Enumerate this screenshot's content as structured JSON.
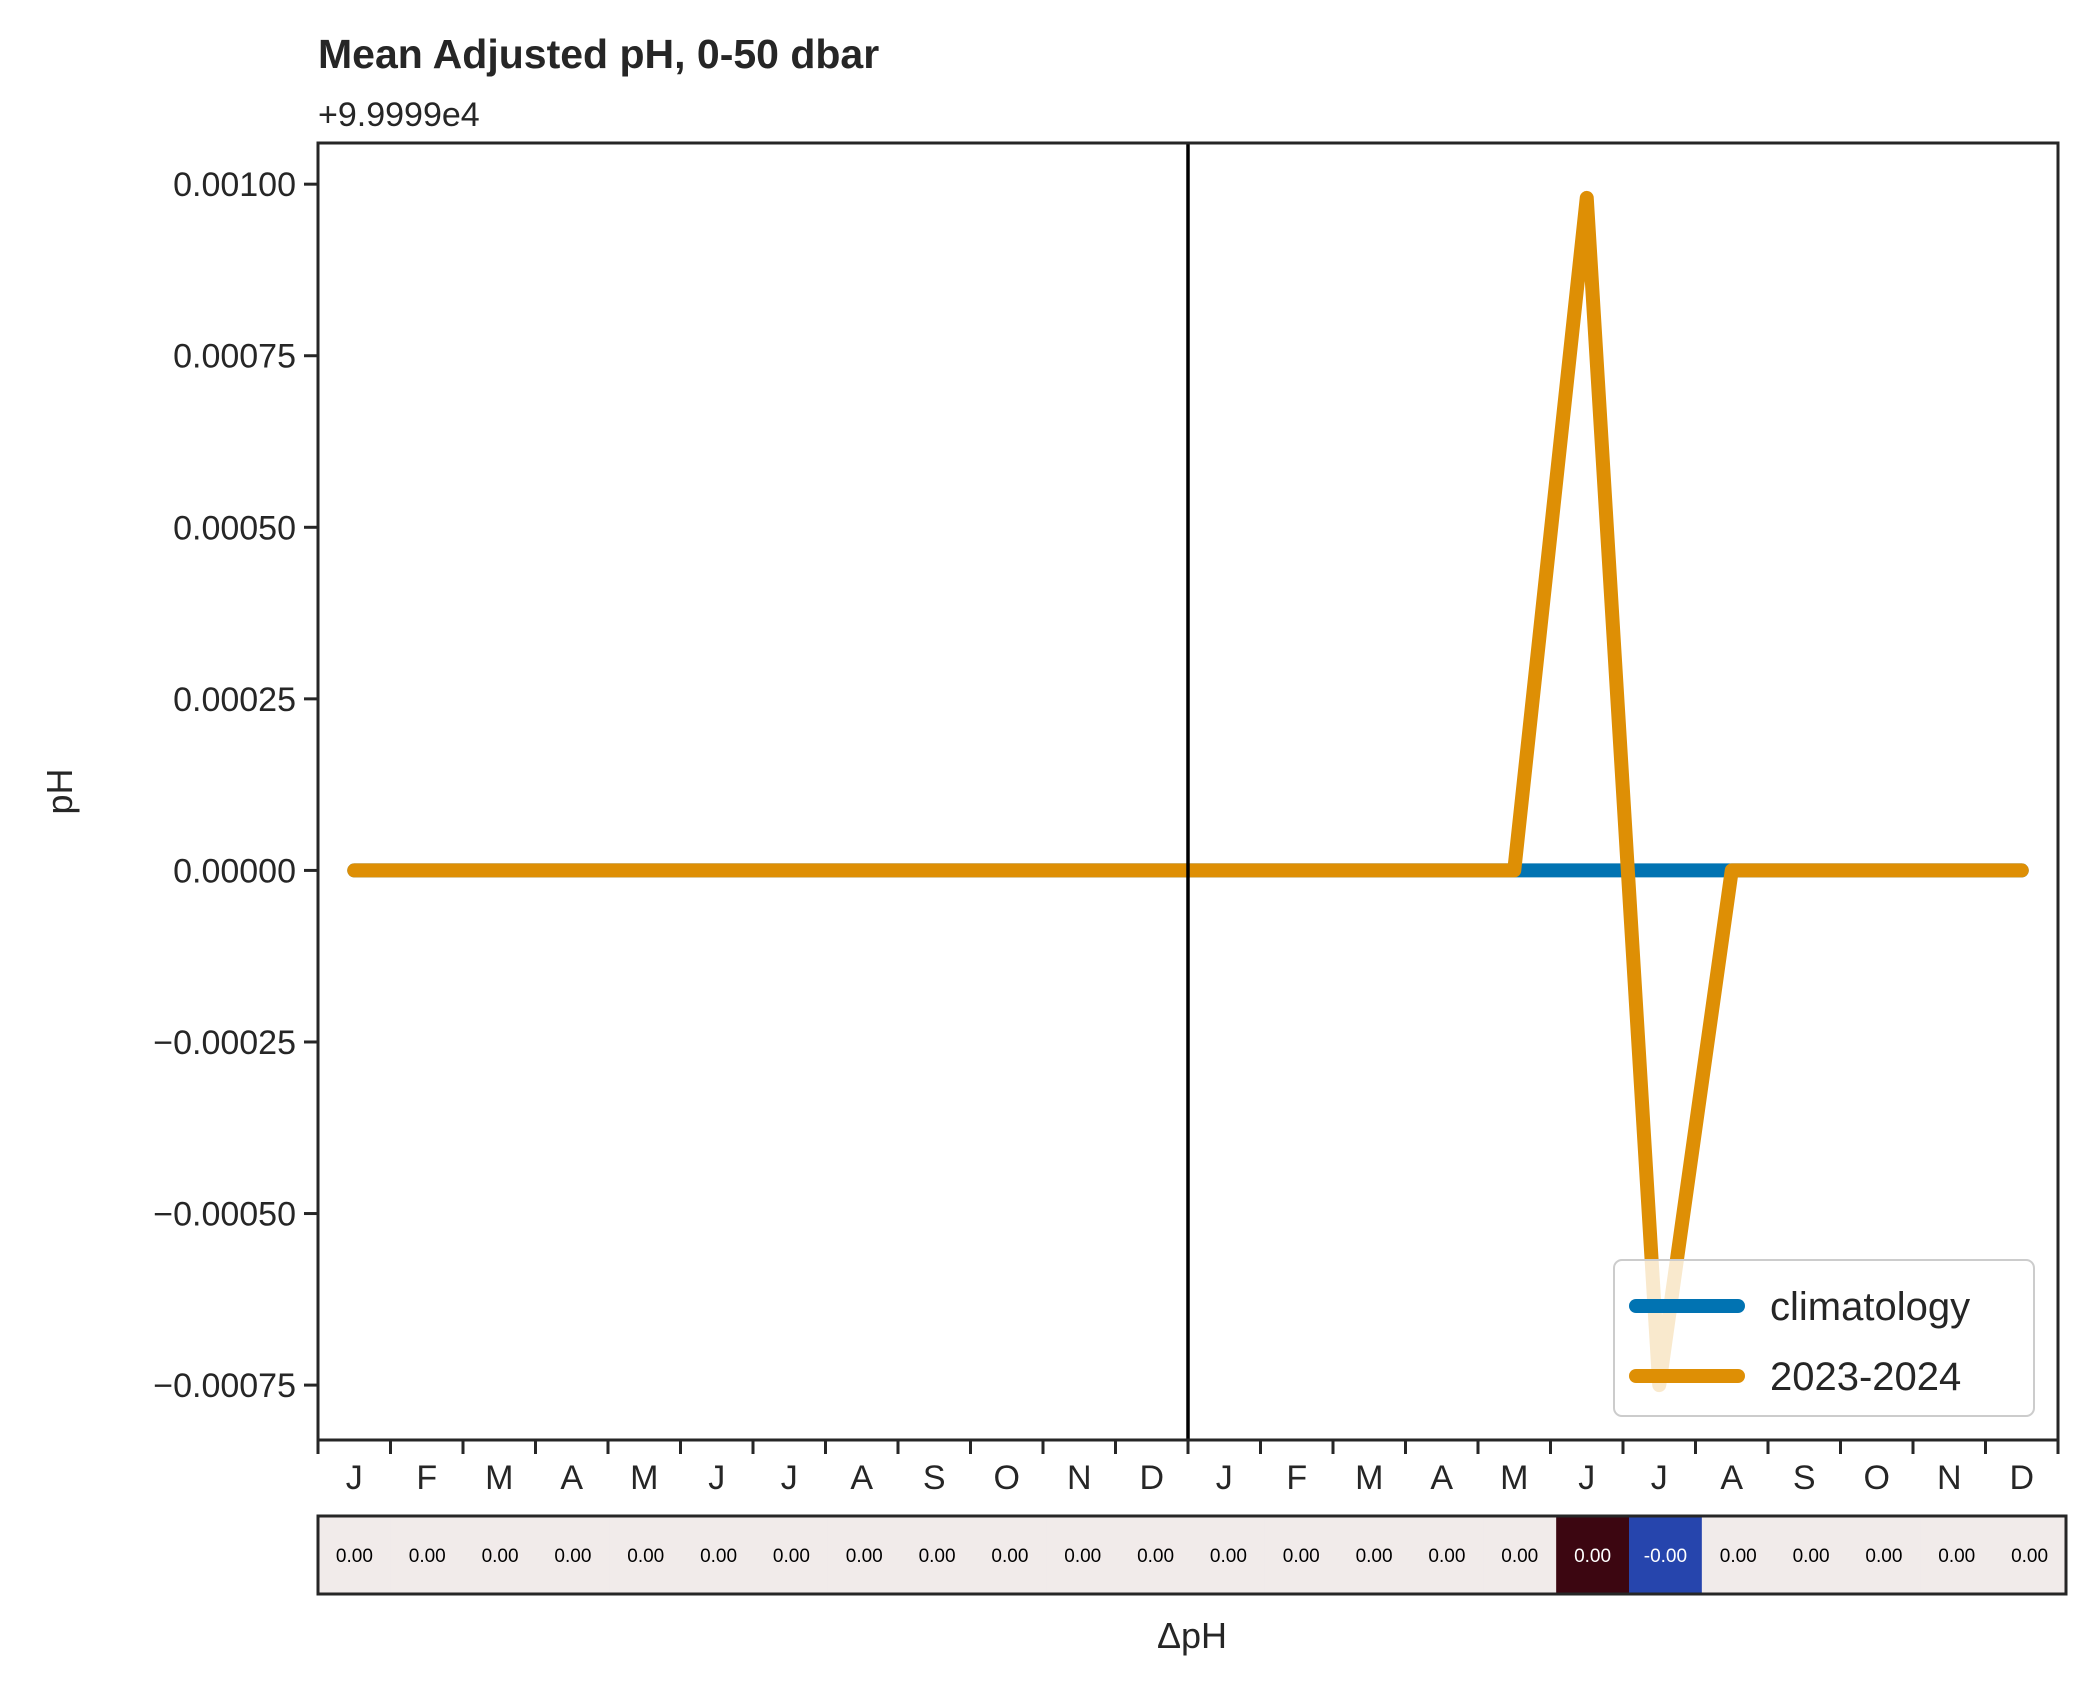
{
  "chart_data": {
    "type": "line",
    "title": "Mean Adjusted pH, 0-50 dbar",
    "offset_text": "+9.9999e4",
    "ylabel": "pH",
    "xlabel": "ΔpH",
    "ylim": [
      -0.00083,
      0.00106
    ],
    "yticks": [
      0.001,
      0.00075,
      0.0005,
      0.00025,
      0.0,
      -0.00025,
      -0.0005,
      -0.00075
    ],
    "ytick_labels": [
      "0.00100",
      "0.00075",
      "0.00050",
      "0.00025",
      "0.00000",
      "−0.00025",
      "−0.00050",
      "−0.00075"
    ],
    "x_labels": [
      "J",
      "F",
      "M",
      "A",
      "M",
      "J",
      "J",
      "A",
      "S",
      "O",
      "N",
      "D",
      "J",
      "F",
      "M",
      "A",
      "M",
      "J",
      "J",
      "A",
      "S",
      "O",
      "N",
      "D"
    ],
    "divider_after_index": 11,
    "series": [
      {
        "name": "climatology",
        "color": "#0173b2",
        "values": [
          0,
          0,
          0,
          0,
          0,
          0,
          0,
          0,
          0,
          0,
          0,
          0,
          0,
          0,
          0,
          0,
          0,
          0,
          0,
          0,
          0,
          0,
          0,
          0
        ]
      },
      {
        "name": "2023-2024",
        "color": "#de8f05",
        "values": [
          0,
          0,
          0,
          0,
          0,
          0,
          0,
          0,
          0,
          0,
          0,
          0,
          0,
          0,
          0,
          0,
          0,
          0.00098,
          -0.00075,
          0,
          0,
          0,
          0,
          0
        ]
      }
    ],
    "legend_position": "lower right",
    "delta_strip": {
      "values": [
        "0.00",
        "0.00",
        "0.00",
        "0.00",
        "0.00",
        "0.00",
        "0.00",
        "0.00",
        "0.00",
        "0.00",
        "0.00",
        "0.00",
        "0.00",
        "0.00",
        "0.00",
        "0.00",
        "0.00",
        "0.00",
        "-0.00",
        "0.00",
        "0.00",
        "0.00",
        "0.00",
        "0.00"
      ],
      "colors": [
        "#f1ebea",
        "#f1ebea",
        "#f1ebea",
        "#f1ebea",
        "#f1ebea",
        "#f1ebea",
        "#f1ebea",
        "#f1ebea",
        "#f1ebea",
        "#f1ebea",
        "#f1ebea",
        "#f1ebea",
        "#f1ebea",
        "#f1ebea",
        "#f1ebea",
        "#f1ebea",
        "#f1ebea",
        "#3c0611",
        "#2645ad",
        "#f1ebea",
        "#f1ebea",
        "#f1ebea",
        "#f1ebea",
        "#f1ebea"
      ],
      "text_colors": [
        "#000000",
        "#000000",
        "#000000",
        "#000000",
        "#000000",
        "#000000",
        "#000000",
        "#000000",
        "#000000",
        "#000000",
        "#000000",
        "#000000",
        "#000000",
        "#000000",
        "#000000",
        "#000000",
        "#000000",
        "#ffffff",
        "#ffffff",
        "#000000",
        "#000000",
        "#000000",
        "#000000",
        "#000000"
      ]
    }
  }
}
